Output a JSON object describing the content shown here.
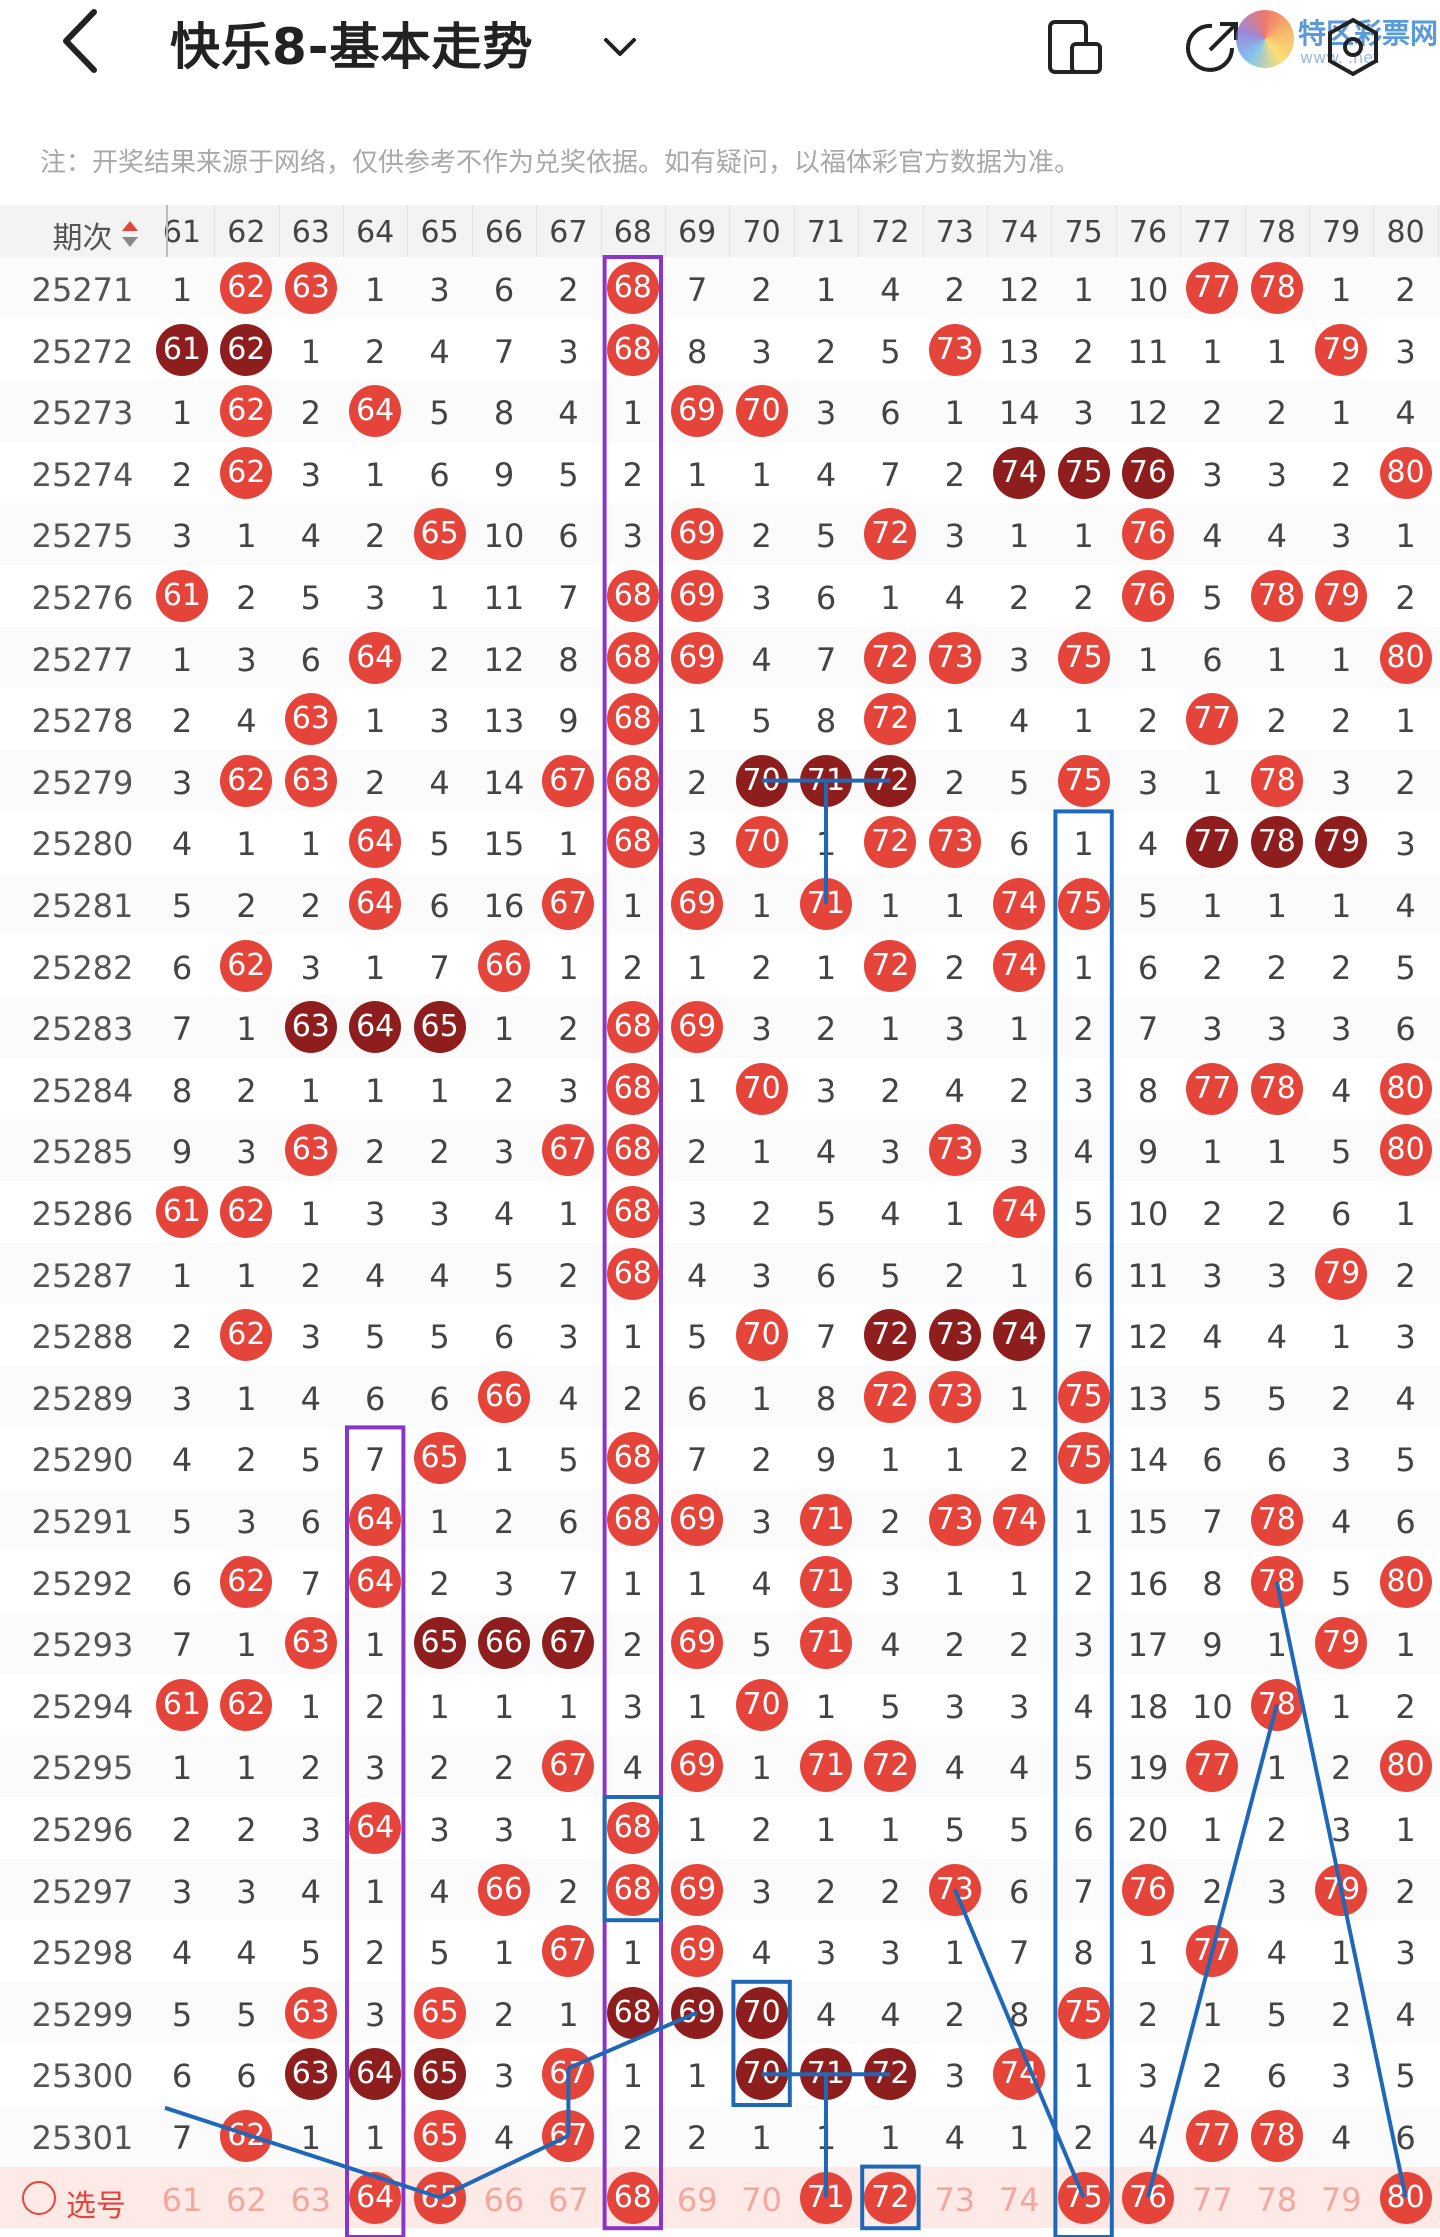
{
  "header": {
    "title": "快乐8-基本走势",
    "back_icon": "chevron-left-icon",
    "dropdown_icon": "chevron-down-icon",
    "icons": [
      "phone-layout-icon",
      "share-icon",
      "settings-icon"
    ]
  },
  "watermark": {
    "name": "特区彩票网",
    "sub": "www.    .net"
  },
  "notice": "注：开奖结果来源于网络，仅供参考不作为兑奖依据。如有疑问，以福体彩官方数据为准。",
  "table": {
    "period_header": "期次",
    "columns": [
      "61",
      "62",
      "63",
      "64",
      "65",
      "66",
      "67",
      "68",
      "69",
      "70",
      "71",
      "72",
      "73",
      "74",
      "75",
      "76",
      "77",
      "78",
      "79",
      "80"
    ],
    "pick_label": "选号",
    "rows": [
      {
        "period": "25271",
        "cells": [
          "1",
          "62",
          "63",
          "1",
          "3",
          "6",
          "2",
          "68",
          "7",
          "2",
          "1",
          "4",
          "2",
          "12",
          "1",
          "10",
          "77",
          "78",
          "1",
          "2"
        ]
      },
      {
        "period": "25272",
        "cells": [
          "61",
          "62",
          "1",
          "2",
          "4",
          "7",
          "3",
          "68",
          "8",
          "3",
          "2",
          "5",
          "73",
          "13",
          "2",
          "11",
          "1",
          "1",
          "79",
          "3"
        ]
      },
      {
        "period": "25273",
        "cells": [
          "1",
          "62",
          "2",
          "64",
          "5",
          "8",
          "4",
          "1",
          "69",
          "70",
          "3",
          "6",
          "1",
          "14",
          "3",
          "12",
          "2",
          "2",
          "1",
          "4"
        ]
      },
      {
        "period": "25274",
        "cells": [
          "2",
          "62",
          "3",
          "1",
          "6",
          "9",
          "5",
          "2",
          "1",
          "1",
          "4",
          "7",
          "2",
          "74",
          "75",
          "76",
          "3",
          "3",
          "2",
          "80"
        ]
      },
      {
        "period": "25275",
        "cells": [
          "3",
          "1",
          "4",
          "2",
          "65",
          "10",
          "6",
          "3",
          "69",
          "2",
          "5",
          "72",
          "3",
          "1",
          "1",
          "76",
          "4",
          "4",
          "3",
          "1"
        ]
      },
      {
        "period": "25276",
        "cells": [
          "61",
          "2",
          "5",
          "3",
          "1",
          "11",
          "7",
          "68",
          "69",
          "3",
          "6",
          "1",
          "4",
          "2",
          "2",
          "76",
          "5",
          "78",
          "79",
          "2"
        ]
      },
      {
        "period": "25277",
        "cells": [
          "1",
          "3",
          "6",
          "64",
          "2",
          "12",
          "8",
          "68",
          "69",
          "4",
          "7",
          "72",
          "73",
          "3",
          "75",
          "1",
          "6",
          "1",
          "1",
          "80"
        ]
      },
      {
        "period": "25278",
        "cells": [
          "2",
          "4",
          "63",
          "1",
          "3",
          "13",
          "9",
          "68",
          "1",
          "5",
          "8",
          "72",
          "1",
          "4",
          "1",
          "2",
          "77",
          "2",
          "2",
          "1"
        ]
      },
      {
        "period": "25279",
        "cells": [
          "3",
          "62",
          "63",
          "2",
          "4",
          "14",
          "67",
          "68",
          "2",
          "70",
          "71",
          "72",
          "2",
          "5",
          "75",
          "3",
          "1",
          "78",
          "3",
          "2"
        ]
      },
      {
        "period": "25280",
        "cells": [
          "4",
          "1",
          "1",
          "64",
          "5",
          "15",
          "1",
          "68",
          "3",
          "70",
          "1",
          "72",
          "73",
          "6",
          "1",
          "4",
          "77",
          "78",
          "79",
          "3"
        ]
      },
      {
        "period": "25281",
        "cells": [
          "5",
          "2",
          "2",
          "64",
          "6",
          "16",
          "67",
          "1",
          "69",
          "1",
          "71",
          "1",
          "1",
          "74",
          "75",
          "5",
          "1",
          "1",
          "1",
          "4"
        ]
      },
      {
        "period": "25282",
        "cells": [
          "6",
          "62",
          "3",
          "1",
          "7",
          "66",
          "1",
          "2",
          "1",
          "2",
          "1",
          "72",
          "2",
          "74",
          "1",
          "6",
          "2",
          "2",
          "2",
          "5"
        ]
      },
      {
        "period": "25283",
        "cells": [
          "7",
          "1",
          "63",
          "64",
          "65",
          "1",
          "2",
          "68",
          "69",
          "3",
          "2",
          "1",
          "3",
          "1",
          "2",
          "7",
          "3",
          "3",
          "3",
          "6"
        ]
      },
      {
        "period": "25284",
        "cells": [
          "8",
          "2",
          "1",
          "1",
          "1",
          "2",
          "3",
          "68",
          "1",
          "70",
          "3",
          "2",
          "4",
          "2",
          "3",
          "8",
          "77",
          "78",
          "4",
          "80"
        ]
      },
      {
        "period": "25285",
        "cells": [
          "9",
          "3",
          "63",
          "2",
          "2",
          "3",
          "67",
          "68",
          "2",
          "1",
          "4",
          "3",
          "73",
          "3",
          "4",
          "9",
          "1",
          "1",
          "5",
          "80"
        ]
      },
      {
        "period": "25286",
        "cells": [
          "61",
          "62",
          "1",
          "3",
          "3",
          "4",
          "1",
          "68",
          "3",
          "2",
          "5",
          "4",
          "1",
          "74",
          "5",
          "10",
          "2",
          "2",
          "6",
          "1"
        ]
      },
      {
        "period": "25287",
        "cells": [
          "1",
          "1",
          "2",
          "4",
          "4",
          "5",
          "2",
          "68",
          "4",
          "3",
          "6",
          "5",
          "2",
          "1",
          "6",
          "11",
          "3",
          "3",
          "79",
          "2"
        ]
      },
      {
        "period": "25288",
        "cells": [
          "2",
          "62",
          "3",
          "5",
          "5",
          "6",
          "3",
          "1",
          "5",
          "70",
          "7",
          "72",
          "73",
          "74",
          "7",
          "12",
          "4",
          "4",
          "1",
          "3"
        ]
      },
      {
        "period": "25289",
        "cells": [
          "3",
          "1",
          "4",
          "6",
          "6",
          "66",
          "4",
          "2",
          "6",
          "1",
          "8",
          "72",
          "73",
          "1",
          "75",
          "13",
          "5",
          "5",
          "2",
          "4"
        ]
      },
      {
        "period": "25290",
        "cells": [
          "4",
          "2",
          "5",
          "7",
          "65",
          "1",
          "5",
          "68",
          "7",
          "2",
          "9",
          "1",
          "1",
          "2",
          "75",
          "14",
          "6",
          "6",
          "3",
          "5"
        ]
      },
      {
        "period": "25291",
        "cells": [
          "5",
          "3",
          "6",
          "64",
          "1",
          "2",
          "6",
          "68",
          "69",
          "3",
          "71",
          "2",
          "73",
          "74",
          "1",
          "15",
          "7",
          "78",
          "4",
          "6"
        ]
      },
      {
        "period": "25292",
        "cells": [
          "6",
          "62",
          "7",
          "64",
          "2",
          "3",
          "7",
          "1",
          "1",
          "4",
          "71",
          "3",
          "1",
          "1",
          "2",
          "16",
          "8",
          "78",
          "5",
          "80"
        ]
      },
      {
        "period": "25293",
        "cells": [
          "7",
          "1",
          "63",
          "1",
          "65",
          "66",
          "67",
          "2",
          "69",
          "5",
          "71",
          "4",
          "2",
          "2",
          "3",
          "17",
          "9",
          "1",
          "79",
          "1"
        ]
      },
      {
        "period": "25294",
        "cells": [
          "61",
          "62",
          "1",
          "2",
          "1",
          "1",
          "1",
          "3",
          "1",
          "70",
          "1",
          "5",
          "3",
          "3",
          "4",
          "18",
          "10",
          "78",
          "1",
          "2"
        ]
      },
      {
        "period": "25295",
        "cells": [
          "1",
          "1",
          "2",
          "3",
          "2",
          "2",
          "67",
          "4",
          "69",
          "1",
          "71",
          "72",
          "4",
          "4",
          "5",
          "19",
          "77",
          "1",
          "2",
          "80"
        ]
      },
      {
        "period": "25296",
        "cells": [
          "2",
          "2",
          "3",
          "64",
          "3",
          "3",
          "1",
          "68",
          "1",
          "2",
          "1",
          "1",
          "5",
          "5",
          "6",
          "20",
          "1",
          "2",
          "3",
          "1"
        ]
      },
      {
        "period": "25297",
        "cells": [
          "3",
          "3",
          "4",
          "1",
          "4",
          "66",
          "2",
          "68",
          "69",
          "3",
          "2",
          "2",
          "73",
          "6",
          "7",
          "76",
          "2",
          "3",
          "79",
          "2"
        ]
      },
      {
        "period": "25298",
        "cells": [
          "4",
          "4",
          "5",
          "2",
          "5",
          "1",
          "67",
          "1",
          "69",
          "4",
          "3",
          "3",
          "1",
          "7",
          "8",
          "1",
          "77",
          "4",
          "1",
          "3"
        ]
      },
      {
        "period": "25299",
        "cells": [
          "5",
          "5",
          "63",
          "3",
          "65",
          "2",
          "1",
          "68",
          "69",
          "70",
          "4",
          "4",
          "2",
          "8",
          "75",
          "2",
          "1",
          "5",
          "2",
          "4"
        ]
      },
      {
        "period": "25300",
        "cells": [
          "6",
          "6",
          "63",
          "64",
          "65",
          "3",
          "67",
          "1",
          "1",
          "70",
          "71",
          "72",
          "3",
          "74",
          "1",
          "3",
          "2",
          "6",
          "3",
          "5"
        ]
      },
      {
        "period": "25301",
        "cells": [
          "7",
          "62",
          "1",
          "1",
          "65",
          "4",
          "67",
          "2",
          "2",
          "1",
          "1",
          "1",
          "4",
          "1",
          "2",
          "4",
          "77",
          "78",
          "4",
          "6"
        ]
      }
    ],
    "pick_row": [
      "61",
      "62",
      "63",
      "64",
      "65",
      "66",
      "67",
      "68",
      "69",
      "70",
      "71",
      "72",
      "73",
      "74",
      "75",
      "76",
      "77",
      "78",
      "79",
      "80"
    ],
    "pick_selected": [
      "64",
      "65",
      "68",
      "71",
      "72",
      "75",
      "76",
      "80"
    ]
  },
  "colors": {
    "red_ball": "#e5443b",
    "dark_ball": "#8e1e1e",
    "line_blue": "#1f68b8",
    "line_purple": "#8a35c9"
  }
}
